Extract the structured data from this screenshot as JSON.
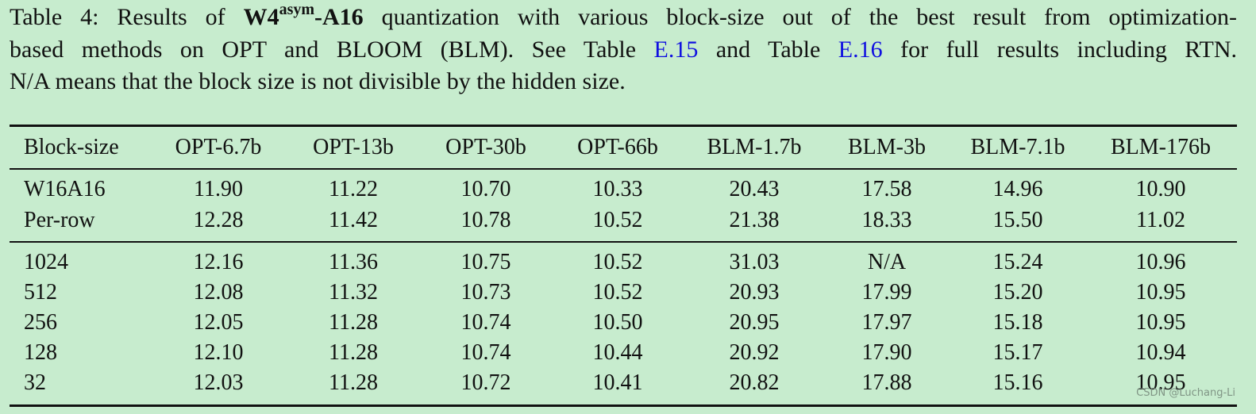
{
  "caption": {
    "line1": {
      "start": "Table 4: Results of ",
      "bold1": "W4",
      "sup": "asym",
      "bold2": "-A16",
      "end": " quantization with various block-size out of the best result from optimization-"
    },
    "line2": {
      "start": "based methods on OPT and BLOOM (BLM). See Table ",
      "link1": "E.15",
      "middle": " and Table ",
      "link2": "E.16",
      "end": " for full results including RTN."
    },
    "line3": "N/A means that the block size is not divisible by the hidden size."
  },
  "table": {
    "header": [
      "Block-size",
      "OPT-6.7b",
      "OPT-13b",
      "OPT-30b",
      "OPT-66b",
      "BLM-1.7b",
      "BLM-3b",
      "BLM-7.1b",
      "BLM-176b"
    ],
    "groups": [
      [
        [
          "W16A16",
          "11.90",
          "11.22",
          "10.70",
          "10.33",
          "20.43",
          "17.58",
          "14.96",
          "10.90"
        ],
        [
          "Per-row",
          "12.28",
          "11.42",
          "10.78",
          "10.52",
          "21.38",
          "18.33",
          "15.50",
          "11.02"
        ]
      ],
      [
        [
          "1024",
          "12.16",
          "11.36",
          "10.75",
          "10.52",
          "31.03",
          "N/A",
          "15.24",
          "10.96"
        ],
        [
          "512",
          "12.08",
          "11.32",
          "10.73",
          "10.52",
          "20.93",
          "17.99",
          "15.20",
          "10.95"
        ],
        [
          "256",
          "12.05",
          "11.28",
          "10.74",
          "10.50",
          "20.95",
          "17.97",
          "15.18",
          "10.95"
        ],
        [
          "128",
          "12.10",
          "11.28",
          "10.74",
          "10.44",
          "20.92",
          "17.90",
          "15.17",
          "10.94"
        ],
        [
          "32",
          "12.03",
          "11.28",
          "10.72",
          "10.41",
          "20.82",
          "17.88",
          "15.16",
          "10.95"
        ]
      ]
    ]
  },
  "watermark": "CSDN @Luchang-Li"
}
